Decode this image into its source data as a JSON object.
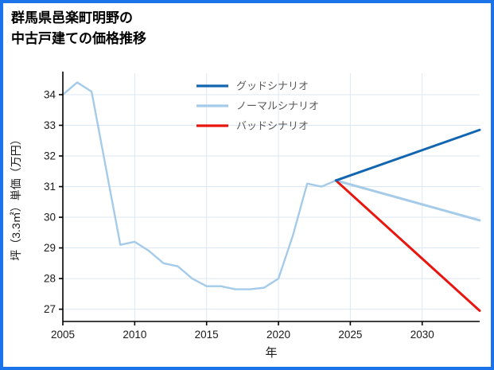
{
  "page": {
    "border_color": "#1a73e8",
    "background": "#ffffff"
  },
  "title": {
    "full": "群馬県邑楽町明野の中古戸建ての価格推移",
    "line1": "群馬県邑楽町明野の",
    "line2": "中古戸建ての価格推移"
  },
  "chart_data": {
    "type": "line",
    "title": "群馬県邑楽町明野の中古戸建ての価格推移",
    "xlabel": "年",
    "ylabel": "坪（3.3㎡）単価（万円）",
    "xlim": [
      2005,
      2034
    ],
    "ylim": [
      26.6,
      34.7
    ],
    "xticks": [
      2005,
      2010,
      2015,
      2020,
      2025,
      2030
    ],
    "yticks": [
      27,
      28,
      29,
      30,
      31,
      32,
      33,
      34
    ],
    "grid": true,
    "grid_color": "#dde7f3",
    "axis_color": "#000000",
    "tick_label_color": "#1a1a1a",
    "legend_position": "upper center",
    "legend_text_color": "#595959",
    "series": [
      {
        "id": "historical",
        "color": "#a4cbe9",
        "width": 2.4,
        "in_legend": false,
        "x": [
          2005,
          2006,
          2007,
          2008,
          2009,
          2010,
          2011,
          2012,
          2013,
          2014,
          2015,
          2016,
          2017,
          2018,
          2019,
          2020,
          2021,
          2022,
          2023,
          2024
        ],
        "y": [
          34.0,
          34.4,
          34.1,
          31.6,
          29.1,
          29.2,
          28.9,
          28.5,
          28.4,
          28.0,
          27.75,
          27.75,
          27.65,
          27.65,
          27.7,
          28.0,
          29.4,
          31.1,
          31.0,
          31.2
        ]
      },
      {
        "id": "normal",
        "name": "ノーマルシナリオ",
        "color": "#a4cbe9",
        "width": 3,
        "in_legend": true,
        "legend_order": 2,
        "x": [
          2024,
          2034
        ],
        "y": [
          31.2,
          29.9
        ]
      },
      {
        "id": "bad",
        "name": "バッドシナリオ",
        "color": "#e8160e",
        "width": 3,
        "in_legend": true,
        "legend_order": 3,
        "x": [
          2024,
          2034
        ],
        "y": [
          31.2,
          26.95
        ]
      },
      {
        "id": "good",
        "name": "グッドシナリオ",
        "color": "#1266b1",
        "width": 3,
        "in_legend": true,
        "legend_order": 1,
        "x": [
          2024,
          2034
        ],
        "y": [
          31.2,
          32.85
        ]
      }
    ]
  }
}
